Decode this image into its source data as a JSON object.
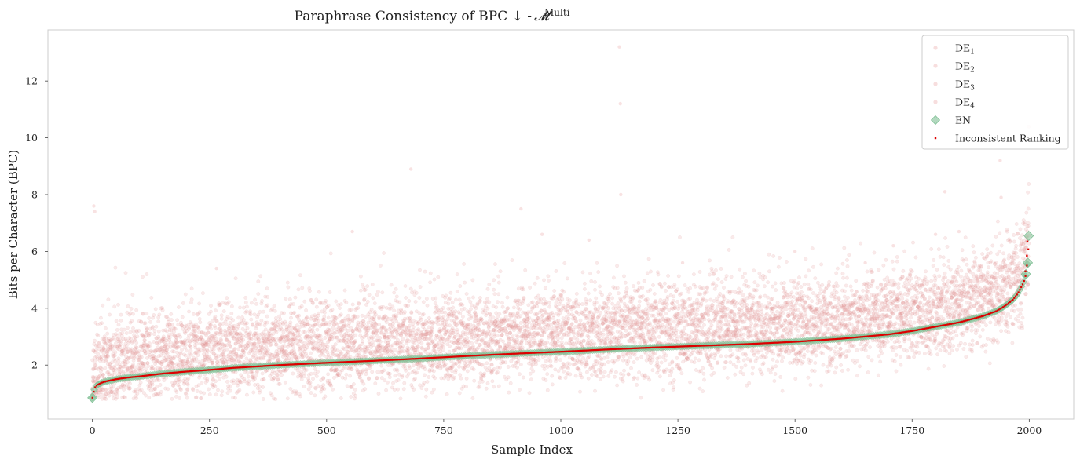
{
  "chart_data": {
    "type": "scatter",
    "title": "Paraphrase Consistency of BPC ↓  - ",
    "title_math": "𝓜",
    "title_superscript": "Multi",
    "xlabel": "Sample Index",
    "ylabel": "Bits per Character (BPC)",
    "xlim": [
      -95,
      2095
    ],
    "ylim": [
      0.1,
      13.8
    ],
    "x_ticks": [
      0,
      250,
      500,
      750,
      1000,
      1250,
      1500,
      1750,
      2000
    ],
    "y_ticks": [
      2,
      4,
      6,
      8,
      10,
      12
    ],
    "grid": false,
    "legend_position": "top-right",
    "legend": [
      {
        "base": "DE",
        "sub": "1",
        "marker": "circle",
        "color": "#e8a0a0"
      },
      {
        "base": "DE",
        "sub": "2",
        "marker": "circle",
        "color": "#e8a0a0"
      },
      {
        "base": "DE",
        "sub": "3",
        "marker": "circle",
        "color": "#e8a0a0"
      },
      {
        "base": "DE",
        "sub": "4",
        "marker": "circle",
        "color": "#e8a0a0"
      },
      {
        "base": "EN",
        "sub": "",
        "marker": "diamond",
        "color": "#7fbf94"
      },
      {
        "base": "Inconsistent Ranking",
        "sub": "",
        "marker": "dot",
        "color": "#dd0000"
      }
    ],
    "n_samples": 2000,
    "series": [
      {
        "name": "EN",
        "description": "sorted ascending BPC per sample",
        "x": [
          0,
          2,
          5,
          10,
          20,
          30,
          50,
          75,
          100,
          150,
          200,
          250,
          300,
          400,
          500,
          600,
          700,
          800,
          900,
          1000,
          1100,
          1200,
          1300,
          1400,
          1500,
          1600,
          1700,
          1750,
          1800,
          1850,
          1900,
          1930,
          1950,
          1965,
          1975,
          1985,
          1990,
          1993,
          1995,
          1997,
          1999
        ],
        "values": [
          0.85,
          1.0,
          1.2,
          1.3,
          1.38,
          1.43,
          1.5,
          1.56,
          1.6,
          1.7,
          1.77,
          1.83,
          1.9,
          2.0,
          2.08,
          2.15,
          2.23,
          2.32,
          2.4,
          2.47,
          2.55,
          2.62,
          2.68,
          2.74,
          2.82,
          2.93,
          3.08,
          3.2,
          3.35,
          3.5,
          3.72,
          3.9,
          4.1,
          4.3,
          4.5,
          4.8,
          5.0,
          5.2,
          5.5,
          5.6,
          6.55
        ]
      },
      {
        "name": "DE1-DE4",
        "description": "paraphrase BPC values scattered around EN curve",
        "outliers": [
          {
            "x": 3,
            "y": 7.6
          },
          {
            "x": 5,
            "y": 7.4
          },
          {
            "x": 265,
            "y": 5.4
          },
          {
            "x": 555,
            "y": 6.7
          },
          {
            "x": 680,
            "y": 8.9
          },
          {
            "x": 915,
            "y": 7.5
          },
          {
            "x": 960,
            "y": 6.6
          },
          {
            "x": 1125,
            "y": 13.2
          },
          {
            "x": 1127,
            "y": 11.2
          },
          {
            "x": 1128,
            "y": 8.0
          },
          {
            "x": 1500,
            "y": 6.0
          },
          {
            "x": 1820,
            "y": 8.1
          },
          {
            "x": 1850,
            "y": 6.7
          },
          {
            "x": 1938,
            "y": 9.2
          },
          {
            "x": 1940,
            "y": 7.9
          },
          {
            "x": 1060,
            "y": 6.4
          },
          {
            "x": 1650,
            "y": 5.6
          },
          {
            "x": 1260,
            "y": 5.6
          },
          {
            "x": 1710,
            "y": 6.2
          },
          {
            "x": 1800,
            "y": 6.6
          }
        ]
      },
      {
        "name": "Inconsistent Ranking",
        "description": "red markers on EN curve for inconsistently ranked samples",
        "extra_points": [
          {
            "x": 1995,
            "y": 5.85
          },
          {
            "x": 1996,
            "y": 6.35
          },
          {
            "x": 1992,
            "y": 5.3
          }
        ]
      }
    ]
  }
}
